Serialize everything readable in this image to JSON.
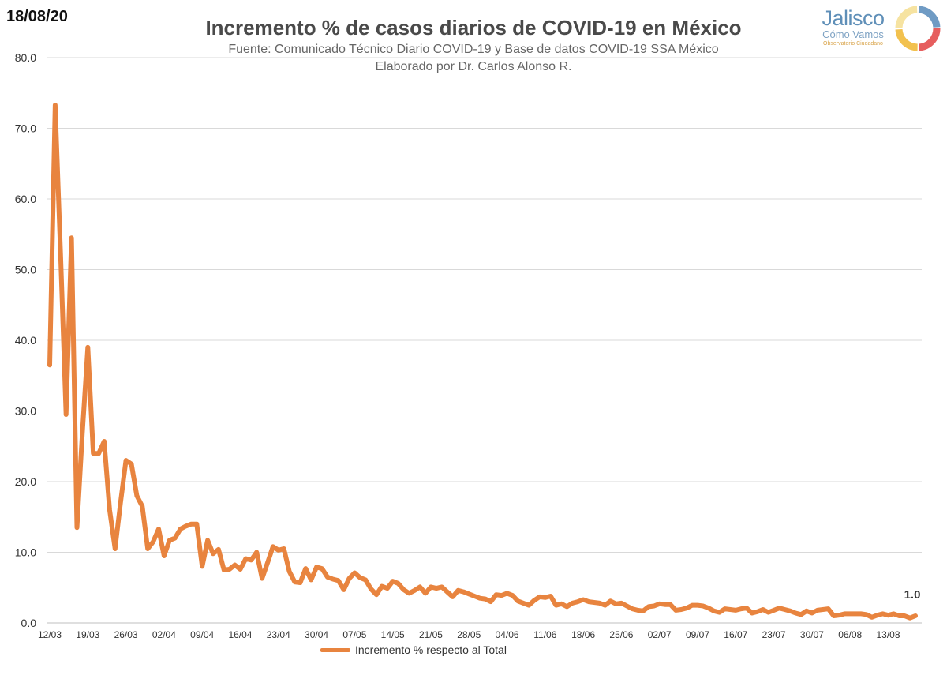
{
  "date_stamp": "18/08/20",
  "logo": {
    "word": "Jalisco",
    "sub": "Cómo Vamos",
    "tag": "Observatorio Ciudadano"
  },
  "chart_data": {
    "type": "line",
    "title": "Incremento % de casos diarios de COVID-19 en México",
    "subtitle_lines": [
      "Fuente: Comunicado Técnico Diario COVID-19 y Base de datos COVID-19 SSA México",
      "Elaborado por Dr. Carlos Alonso R."
    ],
    "xlabel": "",
    "ylabel": "",
    "ylim": [
      0,
      80
    ],
    "ytick_labels": [
      "0.0",
      "10.0",
      "20.0",
      "30.0",
      "40.0",
      "50.0",
      "60.0",
      "70.0",
      "80.0"
    ],
    "x_start": "12/03",
    "x_end": "18/08",
    "xtick_labels": [
      "12/03",
      "19/03",
      "26/03",
      "02/04",
      "09/04",
      "16/04",
      "23/04",
      "30/04",
      "07/05",
      "14/05",
      "21/05",
      "28/05",
      "04/06",
      "11/06",
      "18/06",
      "25/06",
      "02/07",
      "09/07",
      "16/07",
      "23/07",
      "30/07",
      "06/08",
      "13/08"
    ],
    "grid": true,
    "legend_position": "bottom",
    "series": [
      {
        "name": "Incremento % respecto al Total",
        "color": "#e8843f",
        "values": [
          36.5,
          73.3,
          52.0,
          29.5,
          54.5,
          13.5,
          27.0,
          39.0,
          24.0,
          24.0,
          25.7,
          16.0,
          10.5,
          17.0,
          23.0,
          22.5,
          18.0,
          16.5,
          10.5,
          11.5,
          13.3,
          9.5,
          11.7,
          12.0,
          13.3,
          13.7,
          14.0,
          14.0,
          8.0,
          11.7,
          9.8,
          10.4,
          7.5,
          7.6,
          8.2,
          7.6,
          9.1,
          8.9,
          10.0,
          6.3,
          8.5,
          10.8,
          10.3,
          10.5,
          7.3,
          5.8,
          5.7,
          7.7,
          6.1,
          7.9,
          7.7,
          6.5,
          6.2,
          6.0,
          4.7,
          6.3,
          7.1,
          6.4,
          6.1,
          4.8,
          4.0,
          5.2,
          4.9,
          5.9,
          5.6,
          4.7,
          4.2,
          4.6,
          5.1,
          4.2,
          5.1,
          4.9,
          5.1,
          4.4,
          3.7,
          4.6,
          4.4,
          4.1,
          3.8,
          3.5,
          3.4,
          3.0,
          4.0,
          3.9,
          4.2,
          3.9,
          3.1,
          2.8,
          2.5,
          3.2,
          3.7,
          3.6,
          3.8,
          2.5,
          2.7,
          2.3,
          2.8,
          3.0,
          3.3,
          3.0,
          2.9,
          2.8,
          2.5,
          3.1,
          2.7,
          2.8,
          2.4,
          2.0,
          1.8,
          1.7,
          2.3,
          2.4,
          2.7,
          2.6,
          2.6,
          1.8,
          1.9,
          2.1,
          2.5,
          2.5,
          2.4,
          2.1,
          1.7,
          1.5,
          2.0,
          1.9,
          1.8,
          2.0,
          2.1,
          1.4,
          1.6,
          1.9,
          1.5,
          1.8,
          2.1,
          1.9,
          1.7,
          1.4,
          1.2,
          1.7,
          1.4,
          1.8,
          1.9,
          2.0,
          1.0,
          1.1,
          1.3,
          1.3,
          1.3,
          1.3,
          1.2,
          0.8,
          1.1,
          1.3,
          1.1,
          1.3,
          1.0,
          1.0,
          0.7,
          1.0
        ]
      }
    ],
    "annotations": [
      {
        "series": 0,
        "point": "last",
        "text": "1.0"
      }
    ]
  }
}
